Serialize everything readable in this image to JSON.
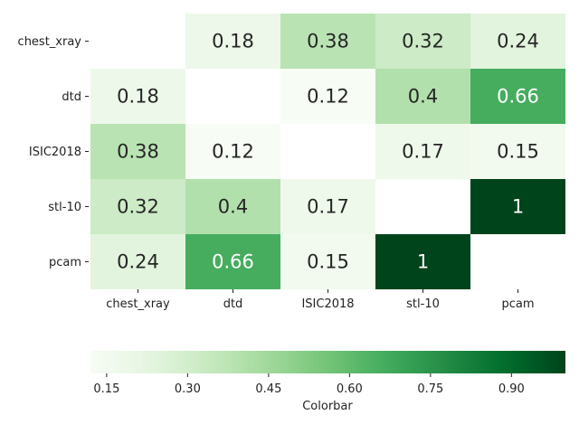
{
  "chart_data": {
    "type": "heatmap",
    "categories": [
      "chest_xray",
      "dtd",
      "ISIC2018",
      "stl-10",
      "pcam"
    ],
    "values": [
      [
        null,
        0.18,
        0.38,
        0.32,
        0.24
      ],
      [
        0.18,
        null,
        0.12,
        0.4,
        0.66
      ],
      [
        0.38,
        0.12,
        null,
        0.17,
        0.15
      ],
      [
        0.32,
        0.4,
        0.17,
        null,
        1
      ],
      [
        0.24,
        0.66,
        0.15,
        1,
        null
      ]
    ],
    "value_labels": [
      [
        "",
        "0.18",
        "0.38",
        "0.32",
        "0.24"
      ],
      [
        "0.18",
        "",
        "0.12",
        "0.4",
        "0.66"
      ],
      [
        "0.38",
        "0.12",
        "",
        "0.17",
        "0.15"
      ],
      [
        "0.32",
        "0.4",
        "0.17",
        "",
        "1"
      ],
      [
        "0.24",
        "0.66",
        "0.15",
        "1",
        ""
      ]
    ],
    "diagonal_masked": true,
    "colormap": "Greens",
    "color_range": [
      0.12,
      1.0
    ],
    "colorbar": {
      "orientation": "horizontal",
      "label": "Colorbar",
      "ticks": [
        0.15,
        0.3,
        0.45,
        0.6,
        0.75,
        0.9
      ],
      "tick_labels": [
        "0.15",
        "0.30",
        "0.45",
        "0.60",
        "0.75",
        "0.90"
      ]
    },
    "grid": false
  }
}
